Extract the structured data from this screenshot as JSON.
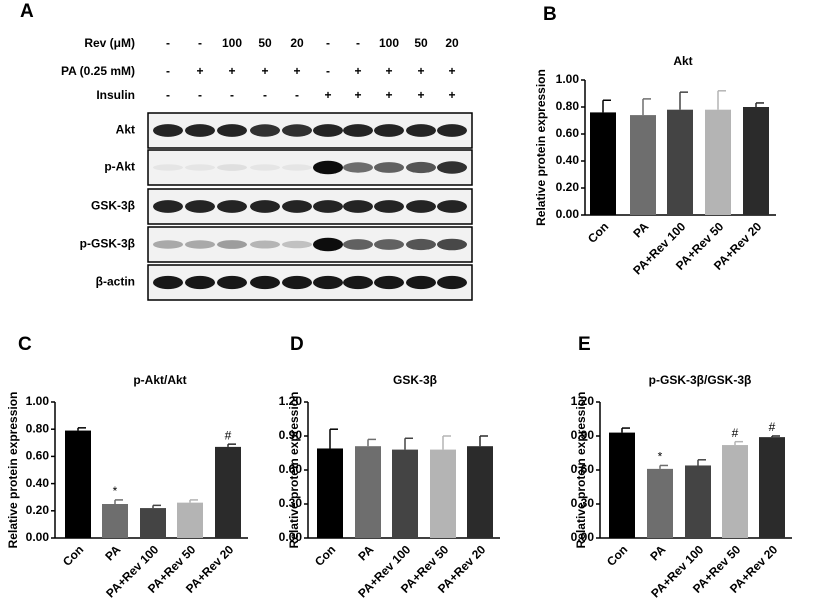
{
  "panel_labels": [
    "A",
    "B",
    "C",
    "D",
    "E"
  ],
  "blot": {
    "conditions": [
      {
        "label": "Rev (μM)",
        "values": [
          "-",
          "-",
          "100",
          "50",
          "20",
          "-",
          "-",
          "100",
          "50",
          "20"
        ]
      },
      {
        "label": "PA (0.25 mM)",
        "values": [
          "-",
          "+",
          "+",
          "+",
          "+",
          "-",
          "+",
          "+",
          "+",
          "+"
        ]
      },
      {
        "label": "Insulin",
        "values": [
          "-",
          "-",
          "-",
          "-",
          "-",
          "+",
          "+",
          "+",
          "+",
          "+"
        ]
      }
    ],
    "rows": [
      "Akt",
      "p-Akt",
      "GSK-3β",
      "p-GSK-3β",
      "β-actin"
    ]
  },
  "chart_data": [
    {
      "type": "bar",
      "title": "Akt",
      "y_label": "Relative protein expression",
      "categories": [
        "Con",
        "PA",
        "PA+Rev 100",
        "PA+Rev 50",
        "PA+Rev 20"
      ],
      "values": [
        0.76,
        0.74,
        0.78,
        0.78,
        0.8
      ],
      "errors": [
        0.09,
        0.12,
        0.13,
        0.14,
        0.03
      ],
      "significance": [
        null,
        null,
        null,
        null,
        null
      ],
      "colors": [
        "#000000",
        "#6e6e6e",
        "#444444",
        "#b4b4b4",
        "#2b2b2b"
      ],
      "ylim": [
        0,
        1
      ],
      "yticks": [
        {
          "value": 0,
          "label": "0.00"
        },
        {
          "value": 0.2,
          "label": "0.20"
        },
        {
          "value": 0.4,
          "label": "0.40"
        },
        {
          "value": 0.6,
          "label": "0.60"
        },
        {
          "value": 0.8,
          "label": "0.80"
        },
        {
          "value": 1,
          "label": "1.00"
        }
      ]
    },
    {
      "type": "bar",
      "title": "p-Akt/Akt",
      "y_label": "Relative protein expression",
      "categories": [
        "Con",
        "PA",
        "PA+Rev 100",
        "PA+Rev 50",
        "PA+Rev 20"
      ],
      "values": [
        0.79,
        0.25,
        0.22,
        0.26,
        0.67
      ],
      "errors": [
        0.02,
        0.03,
        0.02,
        0.02,
        0.02
      ],
      "significance": [
        null,
        "*",
        null,
        null,
        "#"
      ],
      "colors": [
        "#000000",
        "#6e6e6e",
        "#444444",
        "#b4b4b4",
        "#2b2b2b"
      ],
      "ylim": [
        0,
        1
      ],
      "yticks": [
        {
          "value": 0,
          "label": "0.00"
        },
        {
          "value": 0.2,
          "label": "0.20"
        },
        {
          "value": 0.4,
          "label": "0.40"
        },
        {
          "value": 0.6,
          "label": "0.60"
        },
        {
          "value": 0.8,
          "label": "0.80"
        },
        {
          "value": 1,
          "label": "1.00"
        }
      ]
    },
    {
      "type": "bar",
      "title": "GSK-3β",
      "y_label": "Relative protein expression",
      "categories": [
        "Con",
        "PA",
        "PA+Rev 100",
        "PA+Rev 50",
        "PA+Rev 20"
      ],
      "values": [
        0.79,
        0.81,
        0.78,
        0.78,
        0.81
      ],
      "errors": [
        0.17,
        0.06,
        0.1,
        0.12,
        0.09
      ],
      "significance": [
        null,
        null,
        null,
        null,
        null
      ],
      "colors": [
        "#000000",
        "#6e6e6e",
        "#444444",
        "#b4b4b4",
        "#2b2b2b"
      ],
      "ylim": [
        0,
        1.2
      ],
      "yticks": [
        {
          "value": 0,
          "label": "0.00"
        },
        {
          "value": 0.3,
          "label": "0.30"
        },
        {
          "value": 0.6,
          "label": "0.60"
        },
        {
          "value": 0.9,
          "label": "0.90"
        },
        {
          "value": 1.2,
          "label": "1.20"
        }
      ]
    },
    {
      "type": "bar",
      "title": "p-GSK-3β/GSK-3β",
      "y_label": "Relative protein expression",
      "categories": [
        "Con",
        "PA",
        "PA+Rev 100",
        "PA+Rev 50",
        "PA+Rev 20"
      ],
      "values": [
        0.93,
        0.61,
        0.64,
        0.82,
        0.89
      ],
      "errors": [
        0.04,
        0.03,
        0.05,
        0.03,
        0.01
      ],
      "significance": [
        null,
        "*",
        null,
        "#",
        "#"
      ],
      "colors": [
        "#000000",
        "#6e6e6e",
        "#444444",
        "#b4b4b4",
        "#2b2b2b"
      ],
      "ylim": [
        0,
        1.2
      ],
      "yticks": [
        {
          "value": 0,
          "label": "0.00"
        },
        {
          "value": 0.3,
          "label": "0.30"
        },
        {
          "value": 0.6,
          "label": "0.60"
        },
        {
          "value": 0.9,
          "label": "0.90"
        },
        {
          "value": 1.2,
          "label": "1.20"
        }
      ]
    }
  ]
}
